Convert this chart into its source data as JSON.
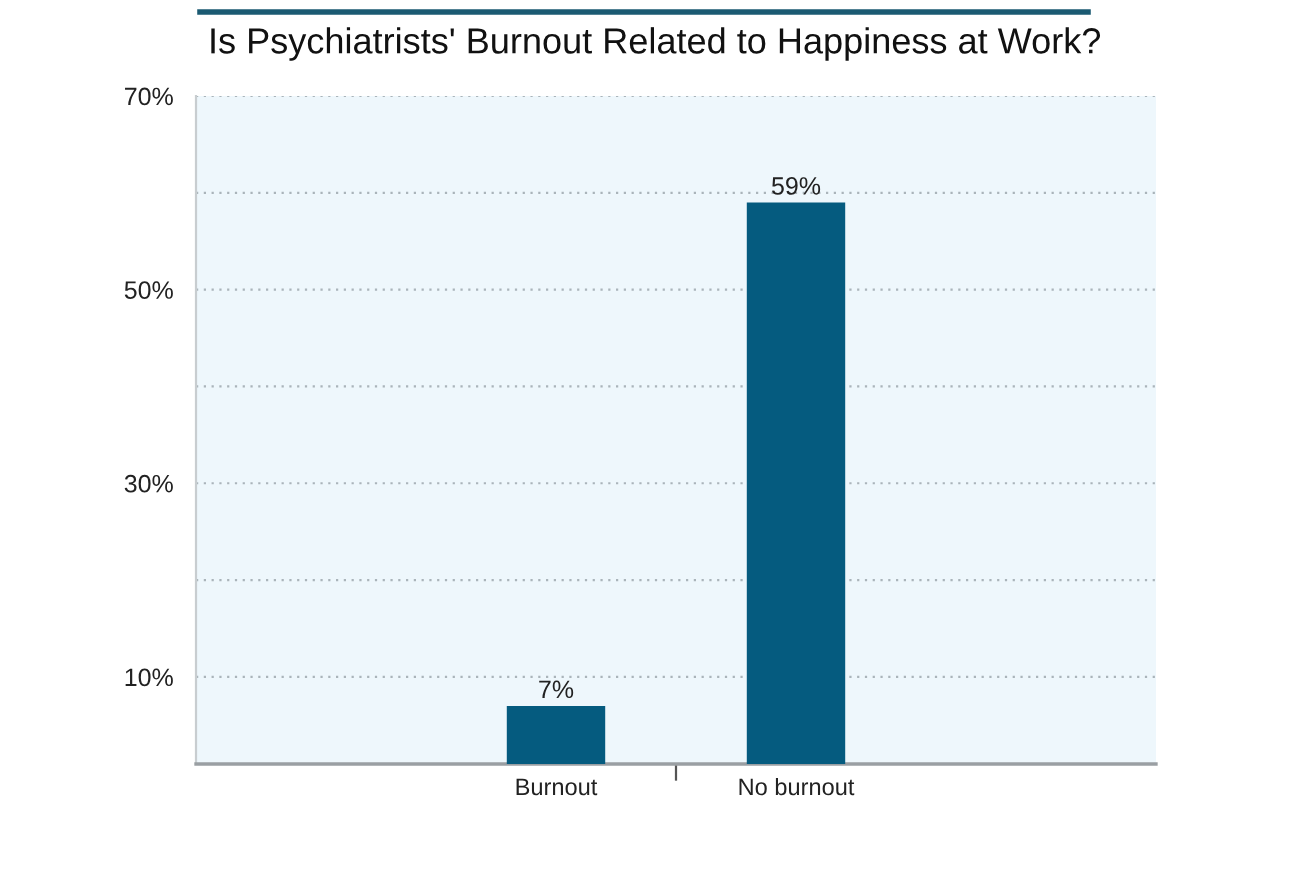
{
  "chart_data": {
    "type": "bar",
    "title": "Is Psychiatrists' Burnout Related to Happiness at Work?",
    "categories": [
      "Burnout",
      "No burnout"
    ],
    "values": [
      7,
      59
    ],
    "color": "#055b7f",
    "value_labels": [
      "7%",
      "59%"
    ],
    "ylim": [
      1,
      70
    ],
    "yticks": [
      {
        "value": 10,
        "label": "10%"
      },
      {
        "value": 20,
        "label": null
      },
      {
        "value": 30,
        "label": "30%"
      },
      {
        "value": 40,
        "label": null
      },
      {
        "value": 50,
        "label": "50%"
      },
      {
        "value": 60,
        "label": null
      },
      {
        "value": 70,
        "label": "70%"
      }
    ],
    "grid": "y"
  }
}
